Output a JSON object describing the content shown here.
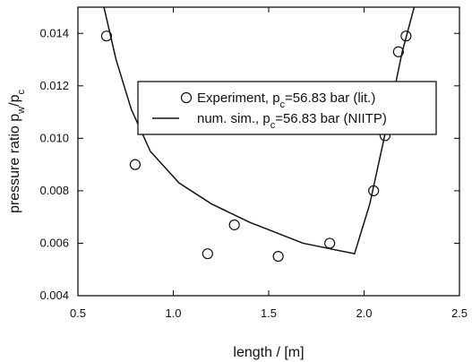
{
  "chart_data": {
    "type": "scatter",
    "xlabel": "length / [m]",
    "ylabel": {
      "main": "pressure ratio p",
      "sub1": "w",
      "sep": "/p",
      "sub2": "c"
    },
    "xlim": [
      0.5,
      2.5
    ],
    "ylim": [
      0.004,
      0.015
    ],
    "x_ticks": [
      0.5,
      1.0,
      1.5,
      2.0,
      2.5
    ],
    "x_tick_labels": [
      "0.5",
      "1.0",
      "1.5",
      "2.0",
      "2.5"
    ],
    "y_ticks": [
      0.004,
      0.006,
      0.008,
      0.01,
      0.012,
      0.014
    ],
    "y_tick_labels": [
      "0.004",
      "0.006",
      "0.008",
      "0.010",
      "0.012",
      "0.014"
    ],
    "grid": false,
    "legend_position": "upper-right",
    "series": [
      {
        "type": "scatter",
        "marker": "open-circle",
        "legend": {
          "pre": "Experiment, p",
          "sub": "c",
          "post": "=56.83 bar (lit.)"
        },
        "x": [
          0.65,
          0.8,
          1.18,
          1.32,
          1.55,
          1.82,
          2.05,
          2.11,
          2.18,
          2.22
        ],
        "y": [
          0.0139,
          0.009,
          0.0056,
          0.0067,
          0.0055,
          0.006,
          0.008,
          0.0101,
          0.0133,
          0.0139
        ]
      },
      {
        "type": "line",
        "legend": {
          "pre": "num. sim., p",
          "sub": "c",
          "post": "=56.83 bar (NIITP)"
        },
        "x": [
          0.63,
          0.7,
          0.78,
          0.88,
          1.03,
          1.2,
          1.4,
          1.68,
          1.95,
          2.03,
          2.12,
          2.2,
          2.27
        ],
        "y": [
          0.0152,
          0.013,
          0.0111,
          0.0095,
          0.0083,
          0.0075,
          0.0068,
          0.006,
          0.0056,
          0.0075,
          0.0105,
          0.0133,
          0.0152
        ]
      }
    ],
    "colors": {
      "axis": "#000000",
      "text": "#111111",
      "line": "#111111",
      "marker": "#111111",
      "background": "#ffffff"
    }
  }
}
